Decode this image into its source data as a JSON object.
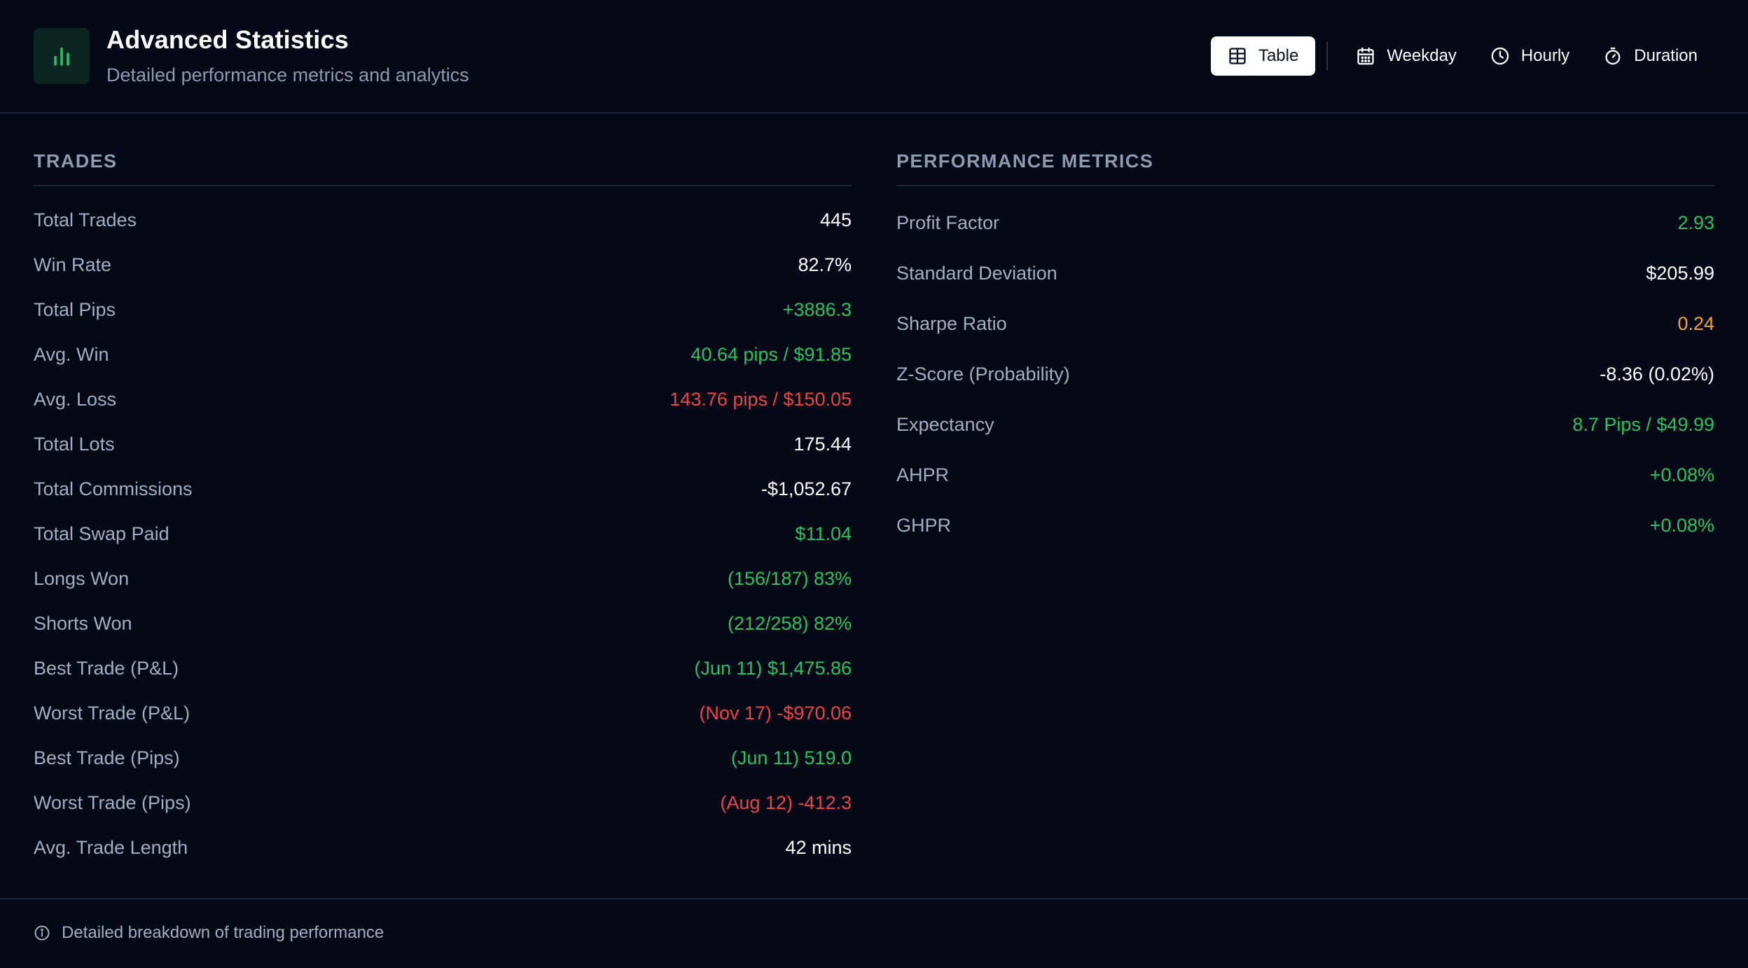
{
  "header": {
    "logo_icon": "bar-chart-icon",
    "title": "Advanced Statistics",
    "subtitle": "Detailed performance metrics and analytics"
  },
  "view_tabs": [
    {
      "label": "Table",
      "icon": "table-icon",
      "active": true
    },
    {
      "label": "Weekday",
      "icon": "calendar-icon",
      "active": false
    },
    {
      "label": "Hourly",
      "icon": "clock-icon",
      "active": false
    },
    {
      "label": "Duration",
      "icon": "stopwatch-icon",
      "active": false
    }
  ],
  "trades": {
    "title": "TRADES",
    "rows": [
      {
        "label": "Total Trades",
        "value": "445",
        "tone": "white"
      },
      {
        "label": "Win Rate",
        "value": "82.7%",
        "tone": "white"
      },
      {
        "label": "Total Pips",
        "value": "+3886.3",
        "tone": "green"
      },
      {
        "label": "Avg. Win",
        "value": "40.64 pips / $91.85",
        "tone": "green"
      },
      {
        "label": "Avg. Loss",
        "value": "143.76 pips / $150.05",
        "tone": "red"
      },
      {
        "label": "Total Lots",
        "value": "175.44",
        "tone": "white"
      },
      {
        "label": "Total Commissions",
        "value": "-$1,052.67",
        "tone": "white"
      },
      {
        "label": "Total Swap Paid",
        "value": "$11.04",
        "tone": "green"
      },
      {
        "label": "Longs Won",
        "value": "(156/187) 83%",
        "tone": "green"
      },
      {
        "label": "Shorts Won",
        "value": "(212/258) 82%",
        "tone": "green"
      },
      {
        "label": "Best Trade (P&L)",
        "value": "(Jun 11) $1,475.86",
        "tone": "green"
      },
      {
        "label": "Worst Trade (P&L)",
        "value": "(Nov 17) -$970.06",
        "tone": "red"
      },
      {
        "label": "Best Trade (Pips)",
        "value": "(Jun 11) 519.0",
        "tone": "green"
      },
      {
        "label": "Worst Trade (Pips)",
        "value": "(Aug 12) -412.3",
        "tone": "red"
      },
      {
        "label": "Avg. Trade Length",
        "value": "42 mins",
        "tone": "white"
      }
    ]
  },
  "performance": {
    "title": "PERFORMANCE METRICS",
    "rows": [
      {
        "label": "Profit Factor",
        "value": "2.93",
        "tone": "green"
      },
      {
        "label": "Standard Deviation",
        "value": "$205.99",
        "tone": "white"
      },
      {
        "label": "Sharpe Ratio",
        "value": "0.24",
        "tone": "amber"
      },
      {
        "label": "Z-Score (Probability)",
        "value": "-8.36 (0.02%)",
        "tone": "white"
      },
      {
        "label": "Expectancy",
        "value": "8.7 Pips / $49.99",
        "tone": "green"
      },
      {
        "label": "AHPR",
        "value": "+0.08%",
        "tone": "green"
      },
      {
        "label": "GHPR",
        "value": "+0.08%",
        "tone": "green"
      }
    ]
  },
  "footer": {
    "icon": "info-icon",
    "text": "Detailed breakdown of trading performance"
  },
  "colors": {
    "background": "#050817",
    "positive": "#22c55e",
    "negative": "#ef4444",
    "warning": "#f5a524",
    "muted": "#8e9ab0",
    "accent": "#22c55e"
  }
}
